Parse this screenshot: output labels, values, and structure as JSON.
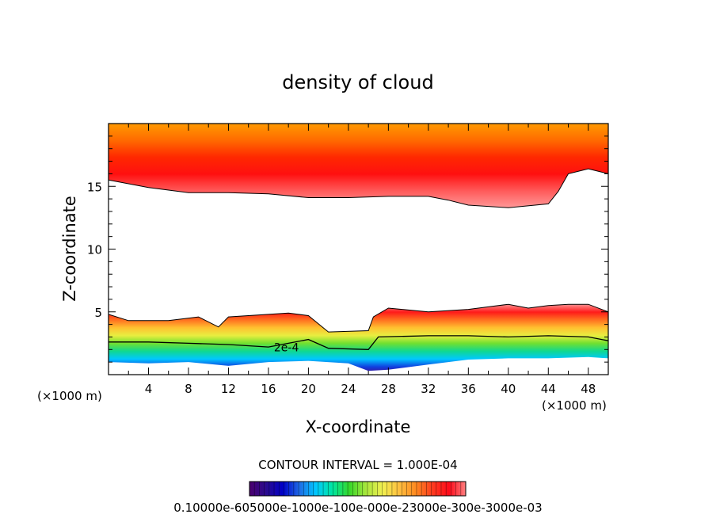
{
  "chart_data": {
    "type": "heatmap",
    "title": "density of cloud",
    "xlabel": "X-coordinate",
    "ylabel": "Z-coordinate",
    "x_unit": "(×1000 m)",
    "x_unit_right": "(×1000 m)",
    "xlim": [
      0,
      50
    ],
    "ylim": [
      0,
      20
    ],
    "x_ticks": [
      4,
      8,
      12,
      16,
      20,
      24,
      28,
      32,
      36,
      40,
      44,
      48
    ],
    "y_ticks": [
      5,
      10,
      15
    ],
    "contour_label": "2e-4",
    "contour_interval_text": "CONTOUR INTERVAL = 1.000E-04",
    "colorbar_labels_text": "0.10000e-605000e-1000e-100e-000e-23000e-300e-3000e-03",
    "colorbar_colors": [
      "#4b006e",
      "#2a0a8f",
      "#0000c8",
      "#1f6be6",
      "#00c8ff",
      "#00e6a0",
      "#36d82a",
      "#a8e63c",
      "#f0f050",
      "#ffc040",
      "#ff8a20",
      "#ff3b1f",
      "#ff0a1a",
      "#ff8080"
    ],
    "upper_layer": {
      "top_z": 20,
      "bottom_boundary": [
        [
          0,
          15.5
        ],
        [
          4,
          14.9
        ],
        [
          8,
          14.5
        ],
        [
          12,
          14.5
        ],
        [
          16,
          14.4
        ],
        [
          20,
          14.1
        ],
        [
          24,
          14.1
        ],
        [
          28,
          14.2
        ],
        [
          32,
          14.2
        ],
        [
          34,
          13.9
        ],
        [
          36,
          13.5
        ],
        [
          40,
          13.3
        ],
        [
          44,
          13.6
        ],
        [
          45,
          14.6
        ],
        [
          46,
          16.0
        ],
        [
          48,
          16.4
        ],
        [
          50,
          16.0
        ]
      ],
      "colors_top_to_bottom": [
        "#ff9a00",
        "#ff6a00",
        "#ff2800",
        "#ff1010",
        "#ff5a5a",
        "#ff9898"
      ]
    },
    "lower_layer": {
      "top_boundary": [
        [
          0,
          4.8
        ],
        [
          2,
          4.3
        ],
        [
          6,
          4.3
        ],
        [
          9,
          4.6
        ],
        [
          11,
          3.8
        ],
        [
          12,
          4.6
        ],
        [
          18,
          4.9
        ],
        [
          20,
          4.7
        ],
        [
          22,
          3.4
        ],
        [
          26,
          3.5
        ],
        [
          26.5,
          4.6
        ],
        [
          28,
          5.3
        ],
        [
          32,
          5.0
        ],
        [
          36,
          5.2
        ],
        [
          38,
          5.4
        ],
        [
          40,
          5.6
        ],
        [
          42,
          5.3
        ],
        [
          44,
          5.5
        ],
        [
          46,
          5.6
        ],
        [
          48,
          5.6
        ],
        [
          50,
          5.0
        ]
      ],
      "contour_2e4": [
        [
          0,
          2.6
        ],
        [
          4,
          2.6
        ],
        [
          8,
          2.5
        ],
        [
          12,
          2.4
        ],
        [
          16,
          2.2
        ],
        [
          18,
          2.5
        ],
        [
          20,
          2.8
        ],
        [
          22,
          2.1
        ],
        [
          26,
          2.0
        ],
        [
          27,
          3.0
        ],
        [
          32,
          3.1
        ],
        [
          36,
          3.1
        ],
        [
          40,
          3.0
        ],
        [
          44,
          3.1
        ],
        [
          48,
          3.0
        ],
        [
          50,
          2.7
        ]
      ],
      "bottom_boundary": [
        [
          0,
          1.0
        ],
        [
          4,
          0.9
        ],
        [
          8,
          1.0
        ],
        [
          12,
          0.7
        ],
        [
          16,
          1.0
        ],
        [
          20,
          1.1
        ],
        [
          24,
          0.9
        ],
        [
          26,
          0.3
        ],
        [
          28,
          0.4
        ],
        [
          32,
          0.8
        ],
        [
          36,
          1.2
        ],
        [
          40,
          1.3
        ],
        [
          44,
          1.3
        ],
        [
          48,
          1.4
        ],
        [
          50,
          1.3
        ]
      ],
      "colors_top_to_bottom": [
        "#ff9090",
        "#ff1a1a",
        "#ff7020",
        "#ffc030",
        "#e8ee40",
        "#70e030",
        "#10d890",
        "#00c8ff",
        "#1040e0",
        "#4a0080"
      ]
    }
  }
}
